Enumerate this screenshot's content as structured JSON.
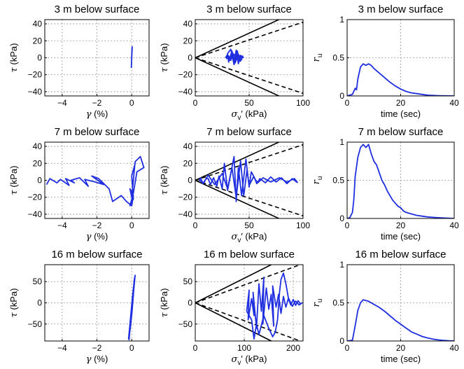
{
  "chart_data": [
    {
      "type": "line",
      "title": "3 m below surface",
      "xlabel": {
        "symbol": "γ",
        "unit": "(%)"
      },
      "ylabel": {
        "symbol": "τ",
        "unit": "(kPa)"
      },
      "xlim": [
        -5,
        1
      ],
      "ylim": [
        -45,
        45
      ],
      "xticks": [
        -4,
        -2,
        0
      ],
      "xticklabels": [
        "−4",
        "−2",
        "0"
      ],
      "yticks": [
        -40,
        -20,
        0,
        20,
        40
      ],
      "yticklabels": [
        "−40",
        "−20",
        "0",
        "20",
        "40"
      ],
      "grid": true,
      "series": [
        {
          "color": "#1f2fe0",
          "x": [
            -0.02,
            -0.01,
            0.0,
            0.01,
            0.02,
            0.03,
            0.02,
            0.0,
            -0.02
          ],
          "y": [
            -12,
            -6,
            0,
            6,
            12,
            13,
            8,
            0,
            -12
          ]
        }
      ]
    },
    {
      "type": "line",
      "title": "3 m below surface",
      "xlabel": {
        "symbol": "σ",
        "sub": "v",
        "prime": "′",
        "unit": "(kPa)"
      },
      "ylabel": {
        "symbol": "τ",
        "unit": "(kPa)"
      },
      "xlim": [
        0,
        100
      ],
      "ylim": [
        -45,
        45
      ],
      "xticks": [
        0,
        50,
        100
      ],
      "xticklabels": [
        "0",
        "50",
        "100"
      ],
      "yticks": [
        -40,
        -20,
        0,
        20,
        40
      ],
      "yticklabels": [
        "−40",
        "−20",
        "0",
        "20",
        "40"
      ],
      "grid": true,
      "refLines": [
        {
          "style": "solid",
          "slope": 0.58
        },
        {
          "style": "dashed",
          "slope": 0.42
        }
      ],
      "series": [
        {
          "color": "#1f2fe0",
          "x": [
            28,
            30,
            32,
            34,
            36,
            38,
            40,
            42,
            41,
            39,
            37,
            35,
            33,
            31,
            29,
            30,
            33,
            36,
            39,
            42,
            44,
            43,
            40,
            37,
            34,
            31,
            30,
            33,
            36,
            40,
            43,
            45
          ],
          "y": [
            0,
            4,
            -3,
            6,
            -5,
            9,
            -7,
            3,
            -4,
            8,
            -6,
            5,
            -3,
            2,
            -1,
            5,
            10,
            -8,
            6,
            -4,
            2,
            -2,
            4,
            -6,
            8,
            -5,
            3,
            -2,
            4,
            -3,
            2,
            0
          ]
        }
      ]
    },
    {
      "type": "line",
      "title": "3 m below surface",
      "xlabel": {
        "unit": "time (sec)"
      },
      "ylabel": {
        "symbol": "r",
        "sub": "u"
      },
      "xlim": [
        0,
        40
      ],
      "ylim": [
        0,
        1
      ],
      "xticks": [
        0,
        20,
        40
      ],
      "xticklabels": [
        "0",
        "20",
        "40"
      ],
      "yticks": [
        0,
        0.5,
        1
      ],
      "yticklabels": [
        "0",
        "0.5",
        "1"
      ],
      "grid": true,
      "series": [
        {
          "color": "#1f2fe0",
          "x": [
            0,
            2,
            3,
            3.5,
            4,
            5,
            6,
            7,
            8,
            9,
            10,
            12,
            14,
            16,
            18,
            20,
            22,
            24,
            26,
            28,
            30,
            32,
            34,
            36,
            38,
            40
          ],
          "y": [
            0,
            0.02,
            0.1,
            0.08,
            0.22,
            0.38,
            0.42,
            0.4,
            0.42,
            0.4,
            0.36,
            0.3,
            0.24,
            0.18,
            0.13,
            0.09,
            0.06,
            0.04,
            0.03,
            0.02,
            0.01,
            0.006,
            0.004,
            0.002,
            0.001,
            0.0
          ]
        }
      ]
    },
    {
      "type": "line",
      "title": "7 m below surface",
      "xlabel": {
        "symbol": "γ",
        "unit": "(%)"
      },
      "ylabel": {
        "symbol": "τ",
        "unit": "(kPa)"
      },
      "xlim": [
        -5,
        1
      ],
      "ylim": [
        -45,
        45
      ],
      "xticks": [
        -4,
        -2,
        0
      ],
      "xticklabels": [
        "−4",
        "−2",
        "0"
      ],
      "yticks": [
        -40,
        -20,
        0,
        20,
        40
      ],
      "yticklabels": [
        "−40",
        "−20",
        "0",
        "20",
        "40"
      ],
      "grid": true,
      "series": [
        {
          "color": "#1f2fe0",
          "x": [
            -4.9,
            -4.7,
            -4.3,
            -4.1,
            -3.6,
            -3.8,
            -3.3,
            -3.5,
            -3.0,
            -2.5,
            -2.7,
            -2.1,
            -1.6,
            -2.3,
            -1.9,
            -1.3,
            -1.1,
            -0.6,
            -0.3,
            0.0,
            0.1,
            -0.1,
            0.0,
            0.2,
            0.5,
            0.7,
            0.3,
            0.1,
            -0.1,
            0.1,
            0.0,
            0.2
          ],
          "y": [
            -5,
            2,
            -3,
            1,
            -6,
            2,
            -3,
            0,
            3,
            -7,
            1,
            -2,
            -5,
            5,
            2,
            -10,
            -25,
            -18,
            -25,
            -30,
            -18,
            -10,
            -20,
            22,
            28,
            15,
            10,
            -15,
            -30,
            -22,
            5,
            20
          ]
        }
      ]
    },
    {
      "type": "line",
      "title": "7 m below surface",
      "xlabel": {
        "symbol": "σ",
        "sub": "v",
        "prime": "′",
        "unit": "(kPa)"
      },
      "ylabel": {
        "symbol": "τ",
        "unit": "(kPa)"
      },
      "xlim": [
        0,
        100
      ],
      "ylim": [
        -45,
        45
      ],
      "xticks": [
        0,
        50,
        100
      ],
      "xticklabels": [
        "0",
        "50",
        "100"
      ],
      "yticks": [
        -40,
        -20,
        0,
        20,
        40
      ],
      "yticklabels": [
        "−40",
        "−20",
        "0",
        "20",
        "40"
      ],
      "grid": true,
      "refLines": [
        {
          "style": "solid",
          "slope": 0.58
        },
        {
          "style": "dashed",
          "slope": 0.42
        }
      ],
      "series": [
        {
          "color": "#1f2fe0",
          "x": [
            95,
            90,
            85,
            80,
            75,
            70,
            65,
            60,
            57,
            55,
            52,
            50,
            47,
            43,
            40,
            38,
            36,
            33,
            30,
            27,
            25,
            22,
            20,
            17,
            14,
            12,
            10,
            8,
            6,
            5,
            4,
            5,
            7,
            12,
            18,
            25,
            30,
            34,
            38,
            42,
            45,
            48,
            50,
            54,
            58,
            63,
            70,
            78,
            85,
            92,
            95
          ],
          "y": [
            -3,
            2,
            -4,
            3,
            -2,
            4,
            -3,
            2,
            -4,
            3,
            10,
            -8,
            25,
            -18,
            15,
            -25,
            28,
            8,
            -12,
            20,
            -10,
            5,
            -7,
            3,
            -5,
            2,
            2,
            -3,
            -2,
            -1,
            0,
            3,
            -4,
            6,
            -5,
            8,
            -10,
            15,
            -20,
            23,
            -18,
            12,
            -6,
            4,
            -3,
            3,
            -2,
            3,
            -2,
            2,
            -3
          ]
        }
      ]
    },
    {
      "type": "line",
      "title": "7 m below surface",
      "xlabel": {
        "unit": "time (sec)"
      },
      "ylabel": {
        "symbol": "r",
        "sub": "u"
      },
      "xlim": [
        0,
        40
      ],
      "ylim": [
        0,
        1
      ],
      "xticks": [
        0,
        20,
        40
      ],
      "xticklabels": [
        "0",
        "20",
        "40"
      ],
      "yticks": [
        0,
        0.5,
        1
      ],
      "yticklabels": [
        "0",
        "0.5",
        "1"
      ],
      "grid": true,
      "series": [
        {
          "color": "#1f2fe0",
          "x": [
            0,
            1,
            2,
            2.5,
            3,
            4,
            5,
            6,
            7,
            8,
            9,
            10,
            11,
            12,
            13,
            14,
            15,
            16,
            17,
            18,
            19,
            20,
            21,
            22,
            24,
            26,
            28,
            30,
            32,
            34,
            36,
            38,
            40
          ],
          "y": [
            0,
            0.01,
            0.08,
            0.25,
            0.55,
            0.8,
            0.93,
            0.97,
            0.93,
            0.97,
            0.85,
            0.75,
            0.7,
            0.6,
            0.5,
            0.44,
            0.36,
            0.3,
            0.24,
            0.2,
            0.16,
            0.14,
            0.1,
            0.08,
            0.06,
            0.04,
            0.03,
            0.02,
            0.015,
            0.01,
            0.006,
            0.003,
            0.0
          ]
        }
      ]
    },
    {
      "type": "line",
      "title": "16 m below surface",
      "xlabel": {
        "symbol": "γ",
        "unit": "(%)"
      },
      "ylabel": {
        "symbol": "τ",
        "unit": "(kPa)"
      },
      "xlim": [
        -5,
        1
      ],
      "ylim": [
        -90,
        90
      ],
      "xticks": [
        -4,
        -2,
        0
      ],
      "xticklabels": [
        "−4",
        "−2",
        "0"
      ],
      "yticks": [
        -50,
        0,
        50
      ],
      "yticklabels": [
        "−50",
        "0",
        "50"
      ],
      "grid": true,
      "series": [
        {
          "color": "#1f2fe0",
          "x": [
            -0.15,
            -0.05,
            0.05,
            0.15,
            0.2,
            0.12,
            0.02,
            -0.08,
            -0.18,
            -0.1,
            0.0,
            0.1,
            0.18,
            0.08,
            -0.05,
            -0.15
          ],
          "y": [
            -88,
            -40,
            10,
            55,
            65,
            30,
            -20,
            -60,
            -85,
            -50,
            -5,
            35,
            60,
            20,
            -40,
            -80
          ]
        }
      ]
    },
    {
      "type": "line",
      "title": "16 m below surface",
      "xlabel": {
        "symbol": "σ",
        "sub": "v",
        "prime": "′",
        "unit": "(kPa)"
      },
      "ylabel": {
        "symbol": "τ",
        "unit": "(kPa)"
      },
      "xlim": [
        0,
        220
      ],
      "ylim": [
        -90,
        90
      ],
      "xticks": [
        0,
        100,
        200
      ],
      "xticklabels": [
        "0",
        "100",
        "200"
      ],
      "yticks": [
        -50,
        0,
        50
      ],
      "yticklabels": [
        "−50",
        "0",
        "50"
      ],
      "grid": true,
      "refLines": [
        {
          "style": "solid",
          "slope": 0.58
        },
        {
          "style": "dashed",
          "slope": 0.42
        }
      ],
      "series": [
        {
          "color": "#1f2fe0",
          "x": [
            105,
            110,
            108,
            115,
            120,
            118,
            125,
            130,
            135,
            140,
            138,
            145,
            150,
            155,
            160,
            158,
            165,
            170,
            175,
            180,
            185,
            190,
            195,
            200,
            205,
            210,
            215,
            218,
            212,
            205,
            198,
            190,
            185,
            180,
            175,
            172,
            168,
            163,
            158,
            150,
            140,
            130,
            125,
            120,
            115,
            110,
            105
          ],
          "y": [
            -20,
            30,
            -40,
            10,
            -30,
            25,
            -60,
            45,
            -20,
            60,
            -50,
            35,
            -15,
            20,
            -55,
            40,
            -10,
            20,
            -25,
            15,
            -10,
            10,
            -5,
            8,
            -6,
            5,
            -3,
            0,
            -5,
            4,
            -8,
            12,
            45,
            70,
            55,
            25,
            -40,
            -70,
            -80,
            -60,
            -30,
            -75,
            -50,
            -85,
            -40,
            -30,
            -20
          ]
        }
      ]
    },
    {
      "type": "line",
      "title": "16 m below surface",
      "xlabel": {
        "unit": "time (sec)"
      },
      "ylabel": {
        "symbol": "r",
        "sub": "u"
      },
      "xlim": [
        0,
        40
      ],
      "ylim": [
        0,
        1
      ],
      "xticks": [
        0,
        20,
        40
      ],
      "xticklabels": [
        "0",
        "20",
        "40"
      ],
      "yticks": [
        0,
        0.5,
        1
      ],
      "yticklabels": [
        "0",
        "0.5",
        "1"
      ],
      "grid": true,
      "series": [
        {
          "color": "#1f2fe0",
          "x": [
            0,
            2,
            3,
            4,
            5,
            6,
            7,
            8,
            9,
            10,
            12,
            14,
            16,
            18,
            20,
            22,
            24,
            26,
            28,
            30,
            32,
            34,
            36,
            38,
            40
          ],
          "y": [
            0,
            0.01,
            0.2,
            0.4,
            0.5,
            0.54,
            0.53,
            0.52,
            0.5,
            0.48,
            0.44,
            0.39,
            0.33,
            0.27,
            0.22,
            0.17,
            0.12,
            0.09,
            0.06,
            0.04,
            0.025,
            0.015,
            0.008,
            0.004,
            0.001
          ]
        }
      ]
    }
  ]
}
